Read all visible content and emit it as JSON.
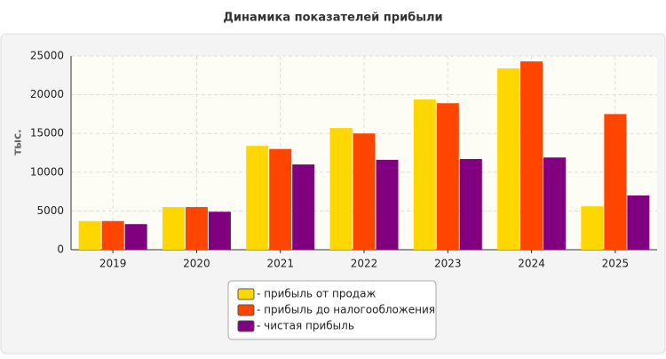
{
  "chart_data": {
    "type": "bar",
    "title": "Динамика показателей прибыли",
    "y_label": "тыс.",
    "categories": [
      "2019",
      "2020",
      "2021",
      "2022",
      "2023",
      "2024",
      "2025"
    ],
    "series": [
      {
        "name": "- прибыль от продаж",
        "color": "#ffd700",
        "values": [
          3700,
          5500,
          13400,
          15700,
          19400,
          23400,
          5600
        ]
      },
      {
        "name": "- прибыль до налогообложения",
        "color": "#ff4500",
        "values": [
          3700,
          5500,
          13000,
          15000,
          18900,
          24300,
          17500
        ]
      },
      {
        "name": "- чистая прибыль",
        "color": "#800080",
        "values": [
          3300,
          4900,
          11000,
          11600,
          11700,
          11900,
          7000
        ]
      }
    ],
    "ylim": [
      0,
      25000
    ],
    "yticks": [
      0,
      5000,
      10000,
      15000,
      20000,
      25000
    ],
    "grid": true,
    "legend": "bottom"
  }
}
